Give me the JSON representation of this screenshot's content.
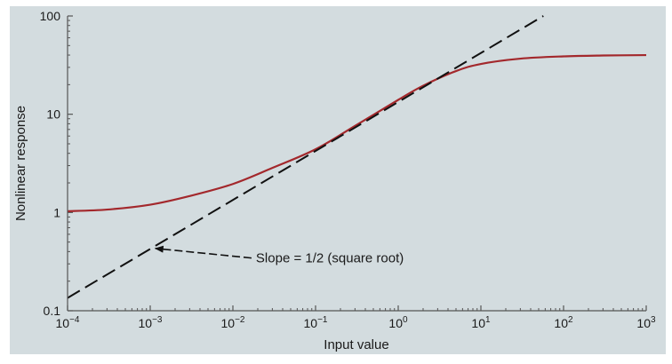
{
  "chart_data": {
    "type": "line",
    "xlabel": "Input value",
    "ylabel": "Nonlinear response",
    "x_scale": "log",
    "y_scale": "log",
    "xlim": [
      0.0001,
      1000
    ],
    "ylim": [
      0.1,
      100
    ],
    "grid": false,
    "background_color": "#d3dcdf",
    "x_ticks": [
      {
        "value": 0.0001,
        "base": "10",
        "exp": "−4"
      },
      {
        "value": 0.001,
        "base": "10",
        "exp": "−3"
      },
      {
        "value": 0.01,
        "base": "10",
        "exp": "−2"
      },
      {
        "value": 0.1,
        "base": "10",
        "exp": "−1"
      },
      {
        "value": 1,
        "base": "10",
        "exp": "0"
      },
      {
        "value": 10,
        "base": "10",
        "exp": "1"
      },
      {
        "value": 100,
        "base": "10",
        "exp": "2"
      },
      {
        "value": 1000,
        "base": "10",
        "exp": "3"
      }
    ],
    "y_ticks": [
      {
        "value": 0.1,
        "label": "0.1"
      },
      {
        "value": 1,
        "label": "1"
      },
      {
        "value": 10,
        "label": "10"
      },
      {
        "value": 100,
        "label": "100"
      }
    ],
    "series": [
      {
        "style": "solid",
        "color": "#a3282c",
        "x": [
          0.0001,
          0.0003,
          0.001,
          0.003,
          0.01,
          0.03,
          0.1,
          0.3,
          1,
          2,
          5,
          10,
          30,
          100,
          300,
          1000
        ],
        "y": [
          1.03,
          1.07,
          1.2,
          1.47,
          1.95,
          2.84,
          4.4,
          7.6,
          14.0,
          19.5,
          27.5,
          32.5,
          36.8,
          38.8,
          39.6,
          40.0
        ]
      },
      {
        "style": "dashed",
        "color": "#111111",
        "x": [
          0.0001,
          57
        ],
        "y": [
          0.135,
          100
        ]
      }
    ],
    "annotations": [
      {
        "text": "Slope = 1/2 (square root)",
        "text_x": 0.019,
        "text_y": 0.31,
        "arrow_x": 0.00107,
        "arrow_y": 0.44
      }
    ]
  }
}
